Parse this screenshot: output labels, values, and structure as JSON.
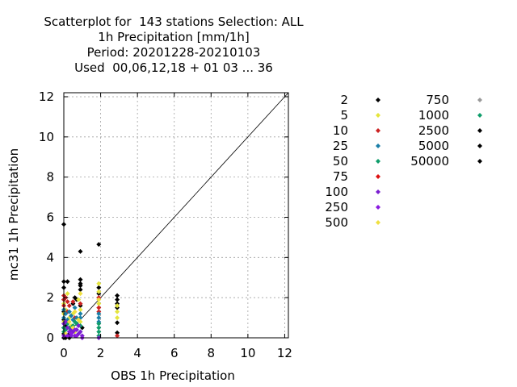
{
  "chart_data": {
    "type": "scatter",
    "title_lines": [
      "Scatterplot for  143 stations Selection: ALL",
      "1h Precipitation [mm/1h]",
      "Period: 20201228-20210103",
      "Used  00,06,12,18 + 01 03 ... 36"
    ],
    "xlabel": "OBS 1h Precipitation",
    "ylabel": "mc31 1h Precipitation",
    "xlim": [
      0,
      12.2
    ],
    "ylim": [
      0,
      12.2
    ],
    "x_ticks": [
      0,
      2,
      4,
      6,
      8,
      10,
      12
    ],
    "y_ticks": [
      0,
      2,
      4,
      6,
      8,
      10,
      12
    ],
    "x_tick_labels": [
      "0",
      "2",
      "4",
      "6",
      "8",
      "10",
      "12"
    ],
    "y_tick_labels": [
      "0",
      "2",
      "4",
      "6",
      "8",
      "10",
      "12"
    ],
    "grid": true,
    "diagonal": true,
    "legend_placement": "right",
    "legend": [
      {
        "label": "2",
        "color": "#000000"
      },
      {
        "label": "5",
        "color": "#e5e53c"
      },
      {
        "label": "10",
        "color": "#cc2222"
      },
      {
        "label": "25",
        "color": "#1a7fa8"
      },
      {
        "label": "50",
        "color": "#0f9d6b"
      },
      {
        "label": "75",
        "color": "#dd1111"
      },
      {
        "label": "100",
        "color": "#7a1fd0"
      },
      {
        "label": "250",
        "color": "#8a1ae0"
      },
      {
        "label": "500",
        "color": "#f0e040"
      },
      {
        "label": "750",
        "color": "#999999"
      },
      {
        "label": "1000",
        "color": "#0f9d6b"
      },
      {
        "label": "2500",
        "color": "#000000"
      },
      {
        "label": "5000",
        "color": "#000000"
      },
      {
        "label": "50000",
        "color": "#000000"
      }
    ],
    "series": [
      {
        "color": "#000000",
        "points": [
          [
            0,
            5.65
          ],
          [
            0,
            2.8
          ],
          [
            0,
            2.5
          ],
          [
            0,
            1.9
          ],
          [
            0,
            1.3
          ],
          [
            0,
            0.9
          ],
          [
            0,
            0.5
          ],
          [
            0,
            0.2
          ],
          [
            0,
            0
          ],
          [
            0.1,
            0.6
          ],
          [
            0.2,
            2.8
          ],
          [
            0.3,
            0.2
          ],
          [
            0.3,
            0.0
          ],
          [
            0.5,
            1.7
          ],
          [
            0.6,
            2.0
          ],
          [
            0.7,
            1.9
          ],
          [
            0.9,
            4.3
          ],
          [
            0.9,
            2.9
          ],
          [
            0.9,
            2.7
          ],
          [
            0.9,
            2.6
          ],
          [
            0.9,
            2.4
          ],
          [
            0.9,
            1.6
          ],
          [
            1.0,
            0.5
          ],
          [
            1.9,
            4.65
          ],
          [
            1.9,
            2.5
          ],
          [
            1.9,
            2.2
          ],
          [
            2.9,
            2.1
          ],
          [
            2.9,
            1.9
          ],
          [
            2.9,
            1.7
          ],
          [
            2.9,
            1.5
          ],
          [
            2.9,
            0.75
          ],
          [
            2.9,
            0.25
          ],
          [
            0.5,
            0.4
          ],
          [
            0.1,
            0.0
          ]
        ]
      },
      {
        "color": "#e5e53c",
        "points": [
          [
            0,
            1.7
          ],
          [
            0,
            1.2
          ],
          [
            0,
            0.8
          ],
          [
            0.1,
            1.4
          ],
          [
            0.2,
            2.2
          ],
          [
            0.3,
            1.0
          ],
          [
            0.4,
            0.6
          ],
          [
            0.5,
            1.2
          ],
          [
            0.6,
            0.3
          ],
          [
            0.8,
            1.9
          ],
          [
            0.9,
            1.4
          ],
          [
            0.9,
            0.8
          ],
          [
            1.9,
            2.7
          ],
          [
            1.9,
            2.3
          ],
          [
            1.9,
            1.7
          ],
          [
            2.9,
            1.6
          ],
          [
            2.9,
            1.3
          ],
          [
            2.9,
            1.0
          ]
        ]
      },
      {
        "color": "#cc2222",
        "points": [
          [
            0,
            2.1
          ],
          [
            0,
            1.9
          ],
          [
            0,
            1.6
          ],
          [
            0.1,
            2.0
          ],
          [
            0.2,
            1.8
          ],
          [
            0.2,
            1.3
          ],
          [
            0.3,
            1.6
          ],
          [
            0.5,
            1.8
          ],
          [
            0.9,
            1.7
          ],
          [
            1.9,
            2.0
          ],
          [
            1.9,
            1.5
          ],
          [
            1.9,
            1.3
          ],
          [
            2.9,
            0.1
          ],
          [
            0.6,
            1.0
          ]
        ]
      },
      {
        "color": "#1a7fa8",
        "points": [
          [
            0,
            1.4
          ],
          [
            0,
            1.0
          ],
          [
            0.1,
            1.2
          ],
          [
            0.2,
            0.9
          ],
          [
            0.3,
            1.3
          ],
          [
            0.4,
            1.1
          ],
          [
            0.5,
            0.9
          ],
          [
            0.6,
            1.5
          ],
          [
            0.7,
            1.0
          ],
          [
            0.9,
            1.2
          ],
          [
            0.9,
            1.0
          ],
          [
            1.9,
            1.2
          ],
          [
            1.9,
            1.0
          ],
          [
            1.9,
            0.8
          ]
        ]
      },
      {
        "color": "#0f9d6b",
        "points": [
          [
            0,
            0.5
          ],
          [
            0,
            0.3
          ],
          [
            0.1,
            0.4
          ],
          [
            0.2,
            0.7
          ],
          [
            0.3,
            0.5
          ],
          [
            0.5,
            0.6
          ],
          [
            0.7,
            0.7
          ],
          [
            0.9,
            0.6
          ],
          [
            1.9,
            0.7
          ],
          [
            1.9,
            0.5
          ],
          [
            1.9,
            0.3
          ],
          [
            1.9,
            0.1
          ],
          [
            0.6,
            0.8
          ]
        ]
      },
      {
        "color": "#7a1fd0",
        "points": [
          [
            0,
            0.7
          ],
          [
            0.1,
            0.8
          ],
          [
            0.2,
            0.5
          ],
          [
            0.3,
            0.3
          ],
          [
            0.4,
            0.1
          ],
          [
            0.5,
            0.3
          ],
          [
            0.6,
            0.1
          ],
          [
            0.7,
            0.4
          ],
          [
            0.8,
            0.2
          ],
          [
            0.9,
            0.3
          ],
          [
            1.0,
            0.1
          ],
          [
            1.9,
            0.0
          ],
          [
            0.8,
            0.6
          ],
          [
            0.4,
            0.4
          ]
        ]
      },
      {
        "color": "#f0e040",
        "points": [
          [
            0.1,
            0.2
          ],
          [
            0.3,
            0.8
          ],
          [
            0.5,
            0.5
          ],
          [
            0.6,
            1.3
          ],
          [
            0.8,
            0.9
          ],
          [
            0.9,
            2.2
          ],
          [
            1.9,
            1.9
          ]
        ]
      },
      {
        "color": "#8a1ae0",
        "points": [
          [
            0.0,
            0.1
          ],
          [
            0.2,
            0.1
          ],
          [
            0.4,
            0.2
          ],
          [
            0.6,
            0.4
          ],
          [
            0.7,
            0.1
          ],
          [
            1.0,
            0.0
          ]
        ]
      }
    ]
  }
}
